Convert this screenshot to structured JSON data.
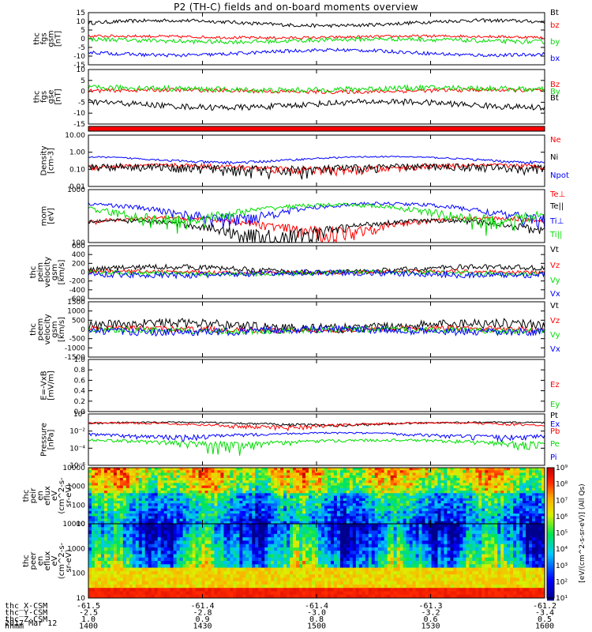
{
  "title": "P2 (TH-C) fields and on-board moments overview",
  "date": "2017 Mar 12",
  "chart_data": [
    {
      "type": "line",
      "panel": "fgs-gsm",
      "ylabel": [
        "thc",
        "fgs",
        "gsm",
        "[nT]"
      ],
      "ylim": [
        -15,
        15
      ],
      "yticks": [
        "15",
        "10",
        "5",
        "0",
        "-5",
        "-10",
        "-15"
      ],
      "series": [
        {
          "name": "Bt",
          "color": "#000000",
          "base": 9,
          "amp": 1.5,
          "noise": 1.0
        },
        {
          "name": "bz",
          "color": "#ff0000",
          "base": 1,
          "amp": 0.5,
          "noise": 0.8
        },
        {
          "name": "by",
          "color": "#00dd00",
          "base": -1,
          "amp": 0.8,
          "noise": 1.2
        },
        {
          "name": "bx",
          "color": "#0000ff",
          "base": -8,
          "amp": 1.5,
          "noise": 1.0
        }
      ]
    },
    {
      "type": "line",
      "panel": "fgs-gse",
      "ylabel": [
        "thc",
        "fgs",
        "gse",
        "[nT]"
      ],
      "ylim": [
        -18,
        10
      ],
      "yticks": [
        "10",
        "5",
        "0",
        "-5",
        "-10",
        "-15"
      ],
      "series": [
        {
          "name": "Bz",
          "color": "#ff0000",
          "base": -1,
          "amp": 0.5,
          "noise": 1.0
        },
        {
          "name": "By",
          "color": "#00dd00",
          "base": 0,
          "amp": 0.6,
          "noise": 1.4
        },
        {
          "name": "Bt",
          "color": "#000000",
          "base": -8,
          "amp": 1.5,
          "noise": 1.5
        }
      ]
    },
    {
      "type": "line",
      "panel": "density",
      "ylabel": [
        "Density",
        "[cm-3]"
      ],
      "yscale": "log",
      "ylim": [
        0.01,
        10
      ],
      "yticks": [
        "10.00",
        "1.00",
        "0.10",
        "0.01"
      ],
      "series": [
        {
          "name": "Ne",
          "color": "#ff0000",
          "base": 0.13,
          "amp": 0.04,
          "noise": 0.05
        },
        {
          "name": "Ni",
          "color": "#000000",
          "base": 0.12,
          "amp": 0.03,
          "noise": 0.07
        },
        {
          "name": "Npot",
          "color": "#0000ff",
          "base": 0.4,
          "amp": 0.15,
          "noise": 0.05
        }
      ]
    },
    {
      "type": "line",
      "panel": "temperature",
      "ylabel": [
        "mom",
        "[eV]"
      ],
      "yscale": "log",
      "ylim": [
        30,
        5000
      ],
      "yticks": [
        "1000",
        "100"
      ],
      "series": [
        {
          "name": "Te⊥",
          "color": "#ff0000",
          "base": 200,
          "amp": 120,
          "noise": 60
        },
        {
          "name": "Te||",
          "color": "#000000",
          "base": 150,
          "amp": 100,
          "noise": 50
        },
        {
          "name": "Ti⊥",
          "color": "#0000ff",
          "base": 800,
          "amp": 500,
          "noise": 200
        },
        {
          "name": "Ti||",
          "color": "#00dd00",
          "base": 700,
          "amp": 450,
          "noise": 200
        }
      ]
    },
    {
      "type": "line",
      "panel": "peim-velocity",
      "ylabel": [
        "thc",
        "peim",
        "velocity",
        "gsm",
        "[km/s]"
      ],
      "ylim": [
        -600,
        600
      ],
      "yticks": [
        "600",
        "400",
        "200",
        "0",
        "-200",
        "-400",
        "-600"
      ],
      "series": [
        {
          "name": "Vt",
          "color": "#000000",
          "base": 60,
          "amp": 60,
          "noise": 60
        },
        {
          "name": "Vz",
          "color": "#ff0000",
          "base": 0,
          "amp": 20,
          "noise": 40
        },
        {
          "name": "Vy",
          "color": "#00dd00",
          "base": -20,
          "amp": 20,
          "noise": 50
        },
        {
          "name": "Vx",
          "color": "#0000ff",
          "base": -40,
          "amp": 30,
          "noise": 70
        }
      ]
    },
    {
      "type": "line",
      "panel": "peem-velocity",
      "ylabel": [
        "thc",
        "peem",
        "velocity",
        "gsm",
        "[km/s]"
      ],
      "ylim": [
        -1500,
        1500
      ],
      "yticks": [
        "1500",
        "1000",
        "500",
        "0",
        "-500",
        "-1000",
        "-1500"
      ],
      "series": [
        {
          "name": "Vt",
          "color": "#000000",
          "base": 200,
          "amp": 150,
          "noise": 250
        },
        {
          "name": "Vz",
          "color": "#ff0000",
          "base": 0,
          "amp": 50,
          "noise": 150
        },
        {
          "name": "Vy",
          "color": "#00dd00",
          "base": -50,
          "amp": 50,
          "noise": 160
        },
        {
          "name": "Vx",
          "color": "#0000ff",
          "base": -80,
          "amp": 80,
          "noise": 200
        }
      ]
    },
    {
      "type": "line",
      "panel": "efield",
      "ylabel": [
        "E=-VxB",
        "[mV/m]"
      ],
      "ylim": [
        0,
        1
      ],
      "yticks": [
        "1.0",
        "0.8",
        "0.6",
        "0.4",
        "0.2",
        "0.0"
      ],
      "series": [
        {
          "name": "Ez",
          "color": "#ff0000"
        },
        {
          "name": "Ey",
          "color": "#00dd00"
        },
        {
          "name": "Ex",
          "color": "#0000ff"
        }
      ]
    },
    {
      "type": "line",
      "panel": "pressure",
      "ylabel": [
        "Pressure",
        "[nPa]"
      ],
      "yscale": "log",
      "ylim": [
        1e-06,
        1
      ],
      "yticks": [
        "10⁰",
        "10⁻²",
        "10⁻⁴",
        "10⁻⁶"
      ],
      "series": [
        {
          "name": "Pt",
          "color": "#000000",
          "base": 0.08,
          "amp": 0.03,
          "noise": 0.02
        },
        {
          "name": "Pb",
          "color": "#ff0000",
          "base": 0.06,
          "amp": 0.03,
          "noise": 0.02
        },
        {
          "name": "Pe",
          "color": "#00dd00",
          "base": 0.0006,
          "amp": 0.0003,
          "noise": 0.0003
        },
        {
          "name": "Pi",
          "color": "#0000ff",
          "base": 0.004,
          "amp": 0.002,
          "noise": 0.0015
        }
      ]
    },
    {
      "type": "heatmap",
      "panel": "peir-en-eflux",
      "ylabel": [
        "thc",
        "peir",
        "en",
        "eflux",
        "eV",
        "(cm^2-s-",
        "sr-eV)"
      ],
      "yscale": "log",
      "ylim": [
        5,
        25000
      ],
      "yticks": [
        "10000",
        "1000",
        "100",
        "10"
      ]
    },
    {
      "type": "heatmap",
      "panel": "peer-en-eflux",
      "ylabel": [
        "thc",
        "peer",
        "en",
        "eflux",
        "eV",
        "(cm^2-s-",
        "sr-eV)"
      ],
      "yscale": "log",
      "ylim": [
        5,
        25000
      ],
      "yticks": [
        "10000",
        "1000",
        "100",
        "10"
      ]
    }
  ],
  "colorbar": {
    "title": "[eV/(cm^2-s-sr-eV)] (All Qs)",
    "ticks": [
      "10⁹",
      "10⁸",
      "10⁷",
      "10⁶",
      "10⁵",
      "10⁴",
      "10³",
      "10²",
      "10¹"
    ]
  },
  "x_axis": {
    "rows": [
      {
        "label": "thc_X-CSM",
        "values": [
          "-61.5",
          "-61.4",
          "-61.4",
          "-61.3",
          "-61.2"
        ]
      },
      {
        "label": "thc_Y-CSM",
        "values": [
          "-2.5",
          "-2.8",
          "-3.0",
          "-3.2",
          "-3.4"
        ]
      },
      {
        "label": "thc_Z-CSM",
        "values": [
          "1.0",
          "0.9",
          "0.8",
          "0.6",
          "0.5"
        ]
      },
      {
        "label": "hhmm",
        "values": [
          "1400",
          "1430",
          "1500",
          "1530",
          "1600"
        ]
      }
    ]
  }
}
